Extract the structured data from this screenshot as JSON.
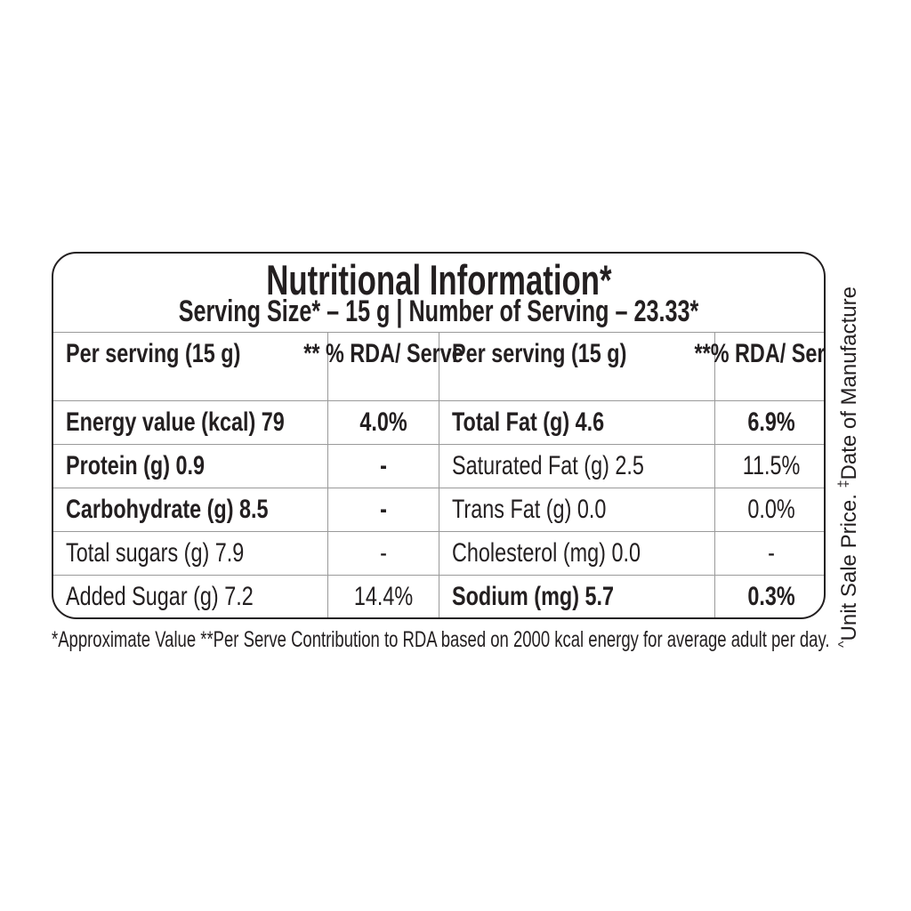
{
  "title": "Nutritional Information*",
  "subtitle": "Serving Size* – 15 g | Number of Serving – 23.33*",
  "columns": [
    "Per serving (15 g)",
    "** % RDA/ Serve",
    "Per serving (15 g)",
    "**% RDA/ Serve"
  ],
  "rows": [
    {
      "left": "Energy value (kcal) 79",
      "left_rda": "4.0%",
      "right": "Total Fat (g)  4.6",
      "right_rda": "6.9%",
      "left_bold": true,
      "right_bold": true
    },
    {
      "left": "Protein (g)  0.9",
      "left_rda": "-",
      "right": "Saturated Fat (g)  2.5",
      "right_rda": "11.5%",
      "left_bold": true,
      "right_bold": false
    },
    {
      "left": "Carbohydrate (g)  8.5",
      "left_rda": "-",
      "right": "Trans Fat (g)  0.0",
      "right_rda": "0.0%",
      "left_bold": true,
      "right_bold": false
    },
    {
      "left": "Total sugars (g)  7.9",
      "left_rda": "-",
      "right": "Cholesterol (mg)  0.0",
      "right_rda": "-",
      "left_bold": false,
      "right_bold": false
    },
    {
      "left": "Added Sugar (g)  7.2",
      "left_rda": "14.4%",
      "right": "Sodium (mg)  5.7",
      "right_rda": "0.3%",
      "left_bold": false,
      "right_bold": true
    }
  ],
  "footnote": "*Approximate Value  **Per Serve Contribution to RDA based on 2000 kcal energy for average adult per day.",
  "side_note": {
    "mark1": "^",
    "text1": "Unit Sale Price.",
    "mark2": "‡",
    "text2": "Date of Manufacture"
  }
}
